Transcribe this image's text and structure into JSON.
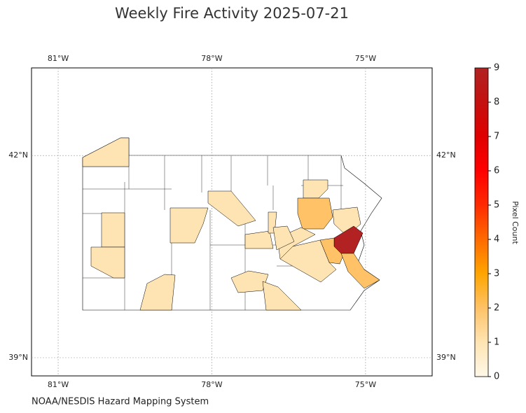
{
  "chart_data": {
    "type": "choropleth",
    "title": "Weekly Fire Activity 2025-07-21",
    "source": "NOAA/NESDIS Hazard Mapping System",
    "xlim": [
      -81.52,
      -73.7
    ],
    "ylim": [
      38.73,
      43.3
    ],
    "xticks": [
      {
        "value": -81,
        "label": "81°W"
      },
      {
        "value": -78,
        "label": "78°W"
      },
      {
        "value": -75,
        "label": "75°W"
      }
    ],
    "yticks": [
      {
        "value": 42,
        "label": "42°N"
      },
      {
        "value": 39,
        "label": "39°N"
      }
    ],
    "grid": true,
    "colorbar": {
      "label": "Pixel Count",
      "lim": [
        0,
        9
      ],
      "ticks": [
        0,
        1,
        2,
        3,
        4,
        5,
        6,
        7,
        8,
        9
      ],
      "colors": [
        "#fff8e8",
        "#ffe4b3",
        "#ffc266",
        "#ffa500",
        "#ff6a00",
        "#ff2a00",
        "#ff0000",
        "#e00000",
        "#c41010",
        "#b22222"
      ]
    },
    "values": [
      1,
      1,
      1,
      1,
      1,
      1,
      2,
      1,
      9,
      2,
      2,
      1,
      1,
      1,
      1,
      1,
      1,
      1,
      1
    ]
  }
}
